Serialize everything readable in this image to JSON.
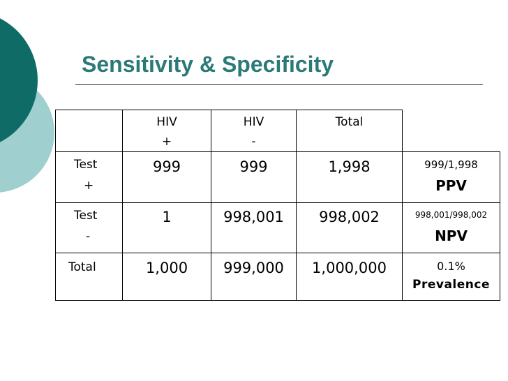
{
  "slide": {
    "title": "Sensitivity & Specificity",
    "accent_color": "#2b7a78"
  },
  "table": {
    "header": {
      "hiv_pos": [
        "HIV",
        "+"
      ],
      "hiv_neg": [
        "HIV",
        "-"
      ],
      "total": "Total"
    },
    "rows": [
      {
        "label": [
          "Test",
          "+"
        ],
        "hiv_pos": "999",
        "hiv_neg": "999",
        "total": "1,998"
      },
      {
        "label": [
          "Test",
          "-"
        ],
        "hiv_pos": "1",
        "hiv_neg": "998,001",
        "total": "998,002"
      },
      {
        "label": [
          "Total"
        ],
        "hiv_pos": "1,000",
        "hiv_neg": "999,000",
        "total": "1,000,000"
      }
    ],
    "metrics": [
      {
        "value": "999/1,998",
        "name": "PPV"
      },
      {
        "value": "998,001/998,002",
        "name": "NPV"
      },
      {
        "value": "0.1%",
        "name": "Prevalence"
      }
    ]
  }
}
